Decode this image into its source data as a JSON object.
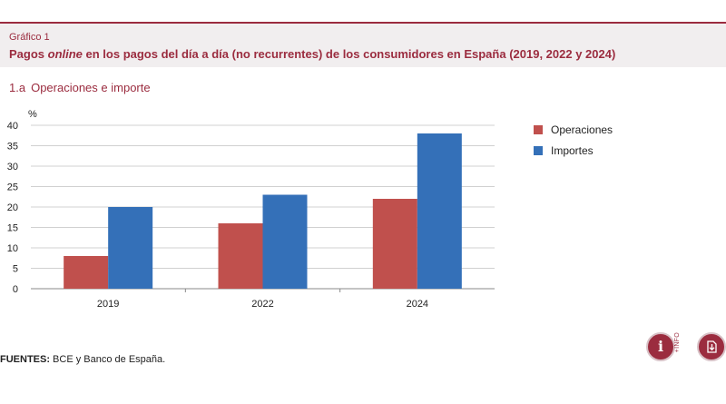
{
  "header": {
    "kicker": "Gráfico 1",
    "title_before": "Pagos ",
    "title_italic": "online",
    "title_after": " en los pagos del día a día (no recurrentes) de los consumidores en España (2019, 2022 y 2024)"
  },
  "panel": {
    "number": "1.a",
    "label": "Operaciones e importe"
  },
  "chart_data": {
    "type": "bar",
    "ylabel": "%",
    "ylim": [
      0,
      40
    ],
    "yticks": [
      0,
      5,
      10,
      15,
      20,
      25,
      30,
      35,
      40
    ],
    "categories": [
      "2019",
      "2022",
      "2024"
    ],
    "series": [
      {
        "name": "Operaciones",
        "color": "#c0504d",
        "values": [
          8,
          16,
          22
        ]
      },
      {
        "name": "Importes",
        "color": "#3470b8",
        "values": [
          20,
          23,
          38
        ]
      }
    ],
    "grid": true,
    "legend_position": "right"
  },
  "sources": {
    "label": "FUENTES:",
    "text": " BCE y Banco de España."
  },
  "buttons": {
    "info_icon": "info-icon",
    "info_tag": "+INFO",
    "download_icon": "download-icon"
  }
}
